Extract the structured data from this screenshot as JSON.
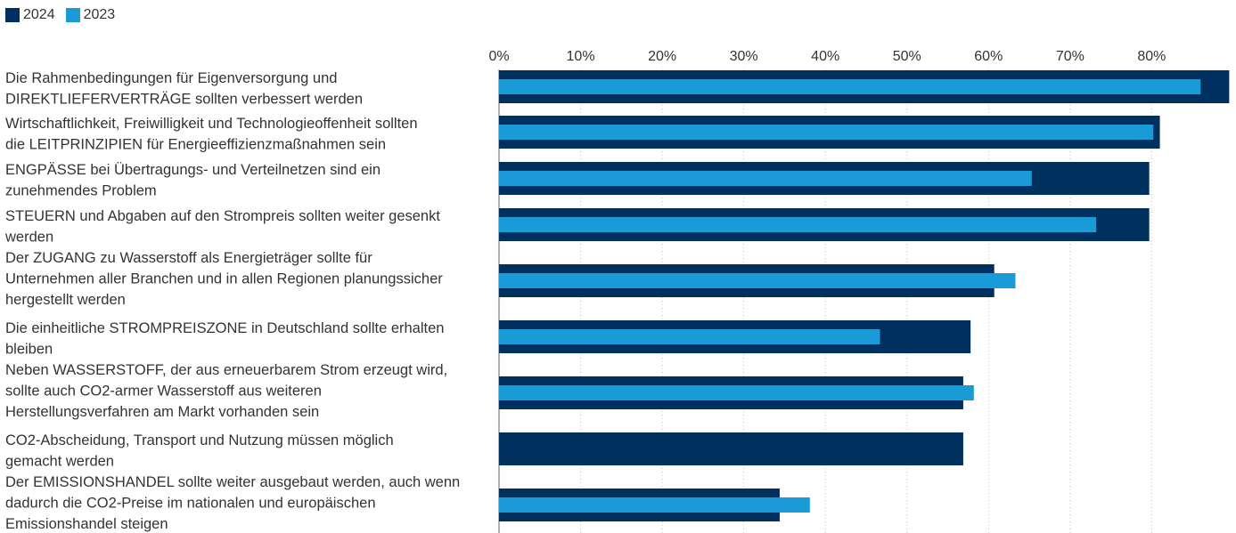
{
  "chart_data": {
    "type": "bar",
    "orientation": "horizontal",
    "title": "",
    "xlabel": "",
    "ylabel": "",
    "xlim": [
      0,
      90
    ],
    "ticks": [
      "0%",
      "10%",
      "20%",
      "30%",
      "40%",
      "50%",
      "60%",
      "70%",
      "80%"
    ],
    "tick_values": [
      0,
      10,
      20,
      30,
      40,
      50,
      60,
      70,
      80
    ],
    "grid": "vertical-dotted",
    "legend_position": "top-left",
    "categories": [
      [
        "Die Rahmenbedingungen für Eigenversorgung und",
        "DIREKTLIEFERVERTRÄGE sollten verbessert werden"
      ],
      [
        "Wirtschaftlichkeit, Freiwilligkeit und Technologieoffenheit sollten",
        "die LEITPRINZIPIEN für Energieeffizienzmaßnahmen sein"
      ],
      [
        "ENGPÄSSE bei Übertragungs- und Verteilnetzen sind ein",
        "zunehmendes Problem"
      ],
      [
        "STEUERN und Abgaben auf den Strompreis sollten weiter gesenkt",
        "werden"
      ],
      [
        "Der ZUGANG zu Wasserstoff als Energieträger sollte für",
        "Unternehmen aller Branchen und in allen Regionen planungssicher",
        "hergestellt werden"
      ],
      [
        "Die einheitliche STROMPREISZONE in Deutschland sollte erhalten",
        "bleiben"
      ],
      [
        "Neben WASSERSTOFF, der aus erneuerbarem Strom erzeugt wird,",
        "sollte auch CO2-armer Wasserstoff aus weiteren",
        "Herstellungsverfahren am Markt vorhanden sein"
      ],
      [
        "CO2-Abscheidung, Transport und Nutzung müssen möglich",
        "gemacht werden"
      ],
      [
        "Der EMISSIONSHANDEL sollte weiter ausgebaut werden, auch wenn",
        "dadurch die CO2-Preise im nationalen und europäischen",
        "Emissionshandel steigen"
      ]
    ],
    "series": [
      {
        "name": "2024",
        "color": "#00305e",
        "values": [
          89.5,
          81,
          79.7,
          79.7,
          60.7,
          57.8,
          56.9,
          56.9,
          34.4
        ]
      },
      {
        "name": "2023",
        "color": "#1a9bd7",
        "values": [
          86,
          80.2,
          65.3,
          73.2,
          63.3,
          46.7,
          58.2,
          null,
          38.1
        ]
      }
    ]
  }
}
